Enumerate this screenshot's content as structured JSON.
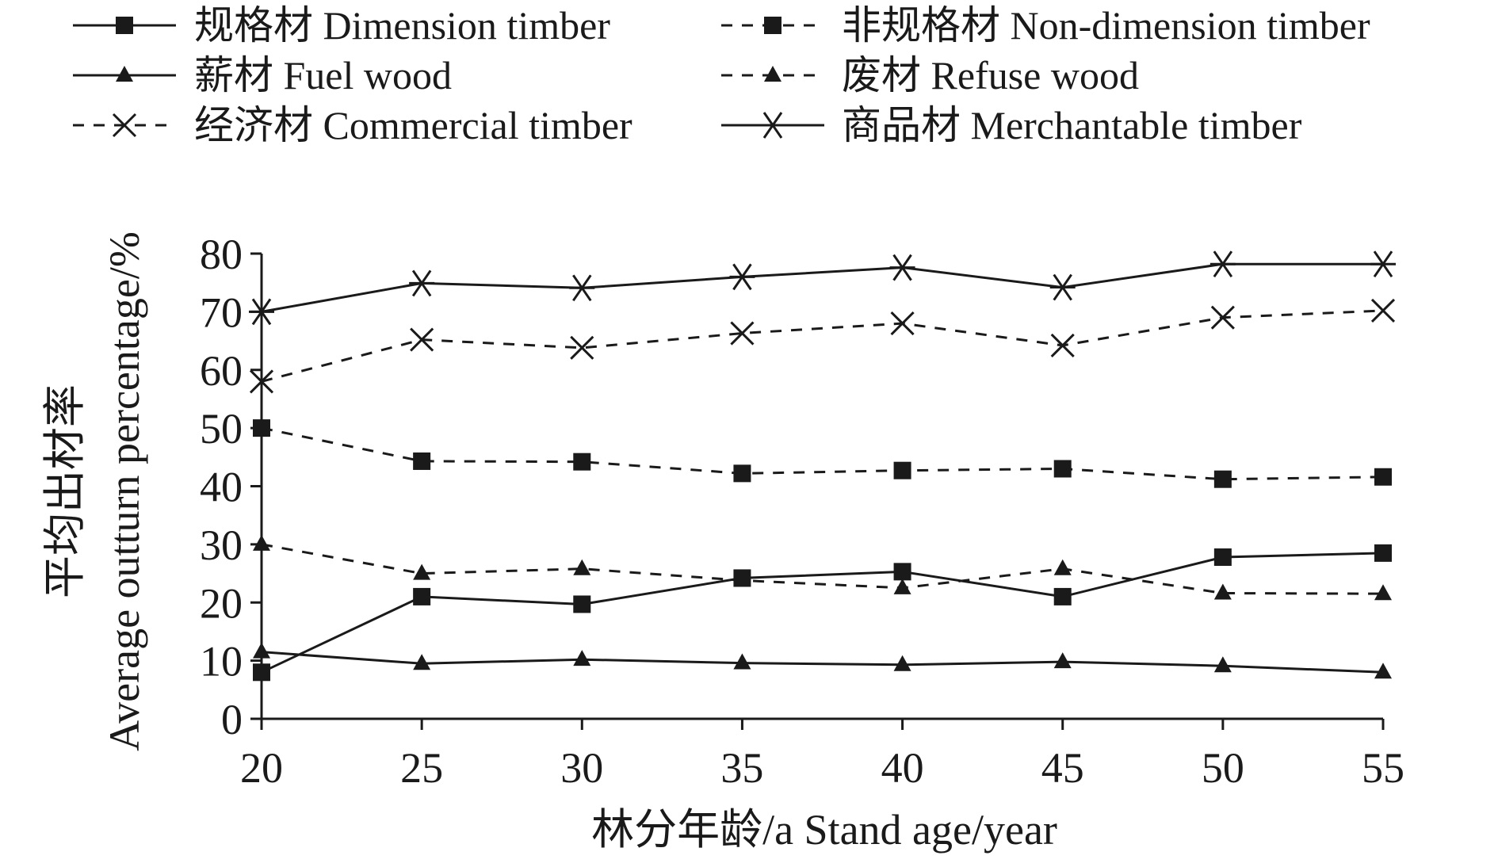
{
  "chart_data": {
    "type": "line",
    "title": "",
    "xlabel": "林分年龄/a Stand age/year",
    "ylabel_lines": [
      "平均出材率",
      "Average outturn percentage/%"
    ],
    "x": [
      20,
      25,
      30,
      35,
      40,
      45,
      50,
      55
    ],
    "xlim": [
      20,
      55
    ],
    "ylim": [
      0,
      80
    ],
    "yticks": [
      0,
      10,
      20,
      30,
      40,
      50,
      60,
      70,
      80
    ],
    "xticks": [
      20,
      25,
      30,
      35,
      40,
      45,
      50,
      55
    ],
    "grid": false,
    "legend_position": "top",
    "series": [
      {
        "name": "规格材 Dimension timber",
        "marker": "square",
        "line": "solid",
        "values": [
          8,
          21,
          19.7,
          24.2,
          25.3,
          21,
          27.8,
          28.5
        ]
      },
      {
        "name": "非规格材 Non-dimension timber",
        "marker": "square",
        "line": "dashed",
        "values": [
          50,
          44.3,
          44.2,
          42.2,
          42.7,
          43,
          41.2,
          41.6
        ]
      },
      {
        "name": "薪材 Fuel wood",
        "marker": "triangle",
        "line": "solid",
        "values": [
          11.5,
          9.5,
          10.2,
          9.6,
          9.3,
          9.8,
          9.1,
          8
        ]
      },
      {
        "name": "废材 Refuse wood",
        "marker": "triangle",
        "line": "dashed",
        "values": [
          30,
          25,
          25.8,
          23.8,
          22.5,
          25.8,
          21.6,
          21.5
        ]
      },
      {
        "name": "经济材 Commercial timber",
        "marker": "x",
        "line": "dashed",
        "values": [
          58,
          65.2,
          63.8,
          66.3,
          68,
          64.2,
          69,
          70.2
        ]
      },
      {
        "name": "商品材 Merchantable timber",
        "marker": "star",
        "line": "solid",
        "values": [
          70,
          74.9,
          74.1,
          76,
          77.6,
          74.2,
          78.2,
          78.2
        ]
      }
    ]
  }
}
